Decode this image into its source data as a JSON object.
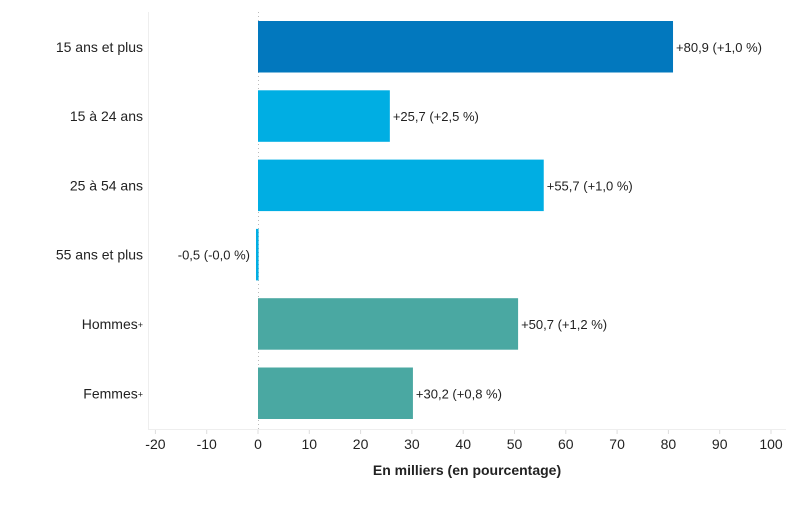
{
  "chart_data": {
    "type": "bar",
    "orientation": "horizontal",
    "categories": [
      "15 ans et plus",
      "15 à 24 ans",
      "25 à 54 ans",
      "55 ans et plus",
      "Hommes",
      "Femmes"
    ],
    "category_markers": [
      "",
      "",
      "",
      "",
      "+",
      "+"
    ],
    "values": [
      80.9,
      25.7,
      55.7,
      -0.5,
      50.7,
      30.2
    ],
    "data_labels": [
      "+80,9 (+1,0 %)",
      "+25,7 (+2,5 %)",
      "+55,7 (+1,0 %)",
      "-0,5 (-0,0 %)",
      "+50,7 (+1,2 %)",
      "+30,2 (+0,8 %)"
    ],
    "colors": [
      "#0278BE",
      "#00AEE3",
      "#00AEE3",
      "#00AEE3",
      "#4AA8A2",
      "#4AA8A2"
    ],
    "xlabel": "En milliers (en pourcentage)",
    "xlim": [
      -20,
      100
    ],
    "xticks": [
      -20,
      -10,
      0,
      10,
      20,
      30,
      40,
      50,
      60,
      70,
      80,
      90,
      100
    ],
    "xtick_labels": [
      "-20",
      "-10",
      "0",
      "10",
      "20",
      "30",
      "40",
      "50",
      "60",
      "70",
      "80",
      "90",
      "100"
    ],
    "grid": false,
    "legend": "none"
  }
}
